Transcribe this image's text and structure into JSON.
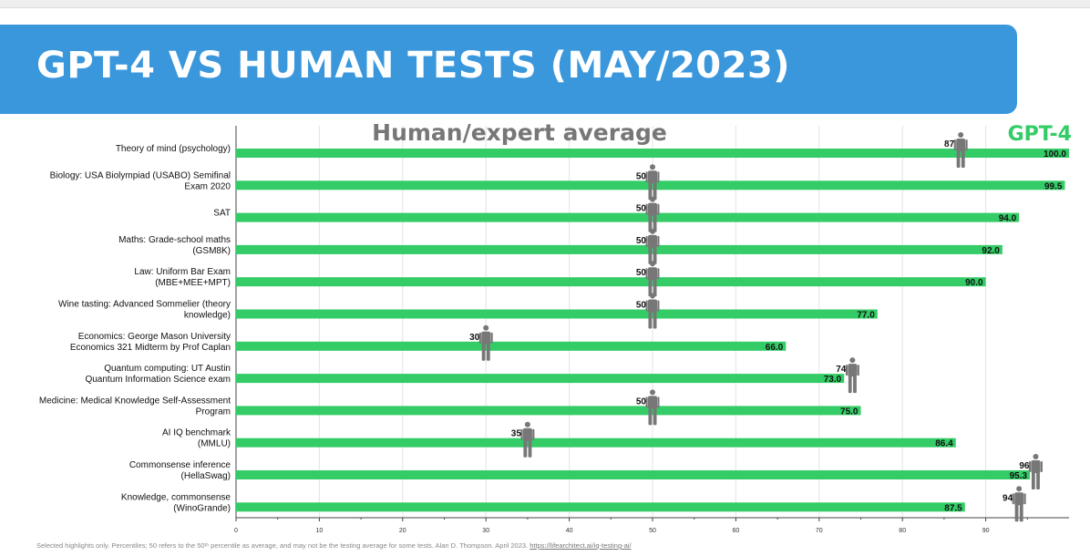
{
  "header": {
    "title": "GPT-4 VS HUMAN TESTS (MAY/2023)"
  },
  "chart_data": {
    "type": "bar",
    "orientation": "horizontal",
    "title": "",
    "legend": [
      {
        "label": "Human/expert average",
        "color": "#777777"
      },
      {
        "label": "GPT-4",
        "color": "#33cc66"
      }
    ],
    "categories": [
      [
        "Theory of mind (psychology)"
      ],
      [
        "Biology: USA Biolympiad (USABO) Semifinal",
        "Exam 2020"
      ],
      [
        "SAT"
      ],
      [
        "Maths: Grade-school maths",
        "(GSM8K)"
      ],
      [
        "Law: Uniform Bar Exam",
        "(MBE+MEE+MPT)"
      ],
      [
        "Wine tasting: Advanced Sommelier (theory",
        "knowledge)"
      ],
      [
        "Economics: George Mason University",
        "Economics 321 Midterm by Prof Caplan"
      ],
      [
        "Quantum computing: UT Austin",
        "Quantum Information Science exam"
      ],
      [
        "Medicine: Medical Knowledge Self-Assessment",
        "Program"
      ],
      [
        "AI IQ benchmark",
        "(MMLU)"
      ],
      [
        "Commonsense inference",
        "(HellaSwag)"
      ],
      [
        "Knowledge, commonsense",
        "(WinoGrande)"
      ]
    ],
    "series": [
      {
        "name": "GPT-4",
        "color": "#33cc66",
        "values": [
          100.0,
          99.5,
          94.0,
          92.0,
          90.0,
          77.0,
          66.0,
          73.0,
          75.0,
          86.4,
          95.3,
          87.5
        ],
        "labels": [
          "100.0",
          "99.5",
          "94.0",
          "92.0",
          "90.0",
          "77.0",
          "66.0",
          "73.0",
          "75.0",
          "86.4",
          "95.3",
          "87.5"
        ]
      },
      {
        "name": "Human/expert average",
        "color": "#777777",
        "marker": "person-icon",
        "values": [
          87,
          50,
          50,
          50,
          50,
          50,
          30,
          74,
          50,
          35,
          96,
          94
        ],
        "labels": [
          "87",
          "50",
          "50",
          "50",
          "50",
          "50",
          "30",
          "74",
          "50",
          "35",
          "96",
          "94"
        ]
      }
    ],
    "xlim": [
      0,
      100
    ],
    "xticks": [
      0,
      10,
      20,
      30,
      40,
      50,
      60,
      70,
      80,
      90
    ],
    "grid": true
  },
  "footer": {
    "note": "Selected highlights only. Percentiles; 50 refers to the 50ᵗʰ percentile as average, and may not be the testing average for some tests. Alan D. Thompson. April 2023. ",
    "link": "https://lifearchitect.ai/iq-testing-ai/"
  }
}
